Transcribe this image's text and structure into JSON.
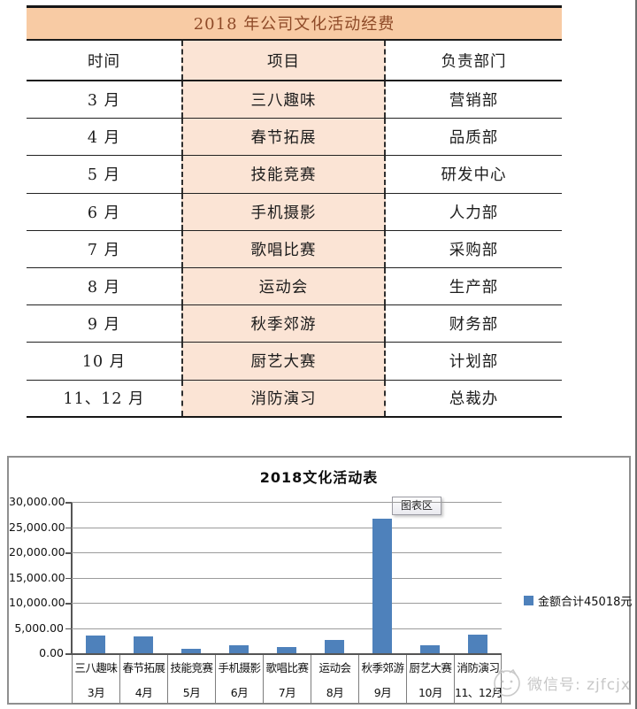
{
  "table": {
    "title": "2018 年公司文化活动经费",
    "columns": [
      "时间",
      "项目",
      "负责部门"
    ],
    "rows": [
      {
        "month": "3 月",
        "project": "三八趣味",
        "department": "营销部"
      },
      {
        "month": "4 月",
        "project": "春节拓展",
        "department": "品质部"
      },
      {
        "month": "5 月",
        "project": "技能竞赛",
        "department": "研发中心"
      },
      {
        "month": "6 月",
        "project": "手机摄影",
        "department": "人力部"
      },
      {
        "month": "7 月",
        "project": "歌唱比赛",
        "department": "采购部"
      },
      {
        "month": "8 月",
        "project": "运动会",
        "department": "生产部"
      },
      {
        "month": "9 月",
        "project": "秋季郊游",
        "department": "财务部"
      },
      {
        "month": "10 月",
        "project": "厨艺大赛",
        "department": "计划部"
      },
      {
        "month": "11、12 月",
        "project": "消防演习",
        "department": "总裁办"
      }
    ],
    "colors": {
      "title_bg": "#F8CBA4",
      "project_col_bg": "#FBE4D5",
      "title_text": "#8E4A28"
    }
  },
  "chart_data": {
    "type": "bar",
    "title": "2018文化活动表",
    "categories": [
      "三八趣味",
      "春节拓展",
      "技能竞赛",
      "手机摄影",
      "歌唱比赛",
      "运动会",
      "秋季郊游",
      "厨艺大赛",
      "消防演习"
    ],
    "category_months": [
      "3月",
      "4月",
      "5月",
      "6月",
      "7月",
      "8月",
      "9月",
      "10月",
      "11、12月"
    ],
    "values": [
      3500,
      3300,
      900,
      1600,
      1300,
      2600,
      26718,
      1500,
      3600
    ],
    "total": 45018,
    "legend": [
      {
        "label": "金额合计45018元",
        "color": "#4E81BB"
      }
    ],
    "legend_position": "right",
    "ylim": [
      0,
      30000
    ],
    "ytick_step": 5000,
    "grid": true,
    "bar_color": "#4E81BB",
    "tooltip": "图表区"
  },
  "watermark": {
    "text": "微信号: zjfcjx"
  }
}
